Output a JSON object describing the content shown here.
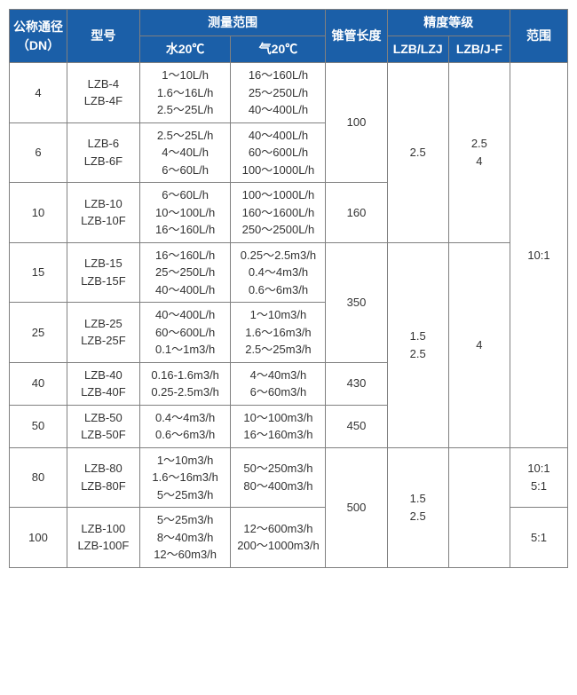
{
  "colors": {
    "header_bg": "#1b5fa8",
    "header_fg": "#ffffff",
    "border": "#808080",
    "text": "#333333",
    "bg": "#ffffff"
  },
  "header": {
    "dn": "公称通径（DN）",
    "model": "型号",
    "measure_range": "测量范围",
    "water": "水20℃",
    "air": "气20℃",
    "cone_length": "锥管长度",
    "accuracy": "精度等级",
    "acc1": "LZB/LZJ",
    "acc2": "LZB/J-F",
    "range": "范围"
  },
  "rows": {
    "dn4": {
      "dn": "4",
      "model": "LZB-4\nLZB-4F",
      "water": "1～10L/h\n1.6～16L/h\n2.5～25L/h",
      "air": "16～160L/h\n25～250L/h\n40～400L/h"
    },
    "dn6": {
      "dn": "6",
      "model": "LZB-6\nLZB-6F",
      "water": "2.5～25L/h\n4～40L/h\n6～60L/h",
      "air": "40～400L/h\n60～600L/h\n100～1000L/h"
    },
    "dn10": {
      "dn": "10",
      "model": "LZB-10\nLZB-10F",
      "water": "6～60L/h\n10～100L/h\n16～160L/h",
      "air": "100～1000L/h\n160～1600L/h\n250～2500L/h"
    },
    "dn15": {
      "dn": "15",
      "model": "LZB-15\nLZB-15F",
      "water": "16～160L/h\n25～250L/h\n40～400L/h",
      "air": "0.25～2.5m3/h\n0.4～4m3/h\n0.6～6m3/h"
    },
    "dn25": {
      "dn": "25",
      "model": "LZB-25\nLZB-25F",
      "water": "40～400L/h\n60～600L/h\n0.1～1m3/h",
      "air": "1～10m3/h\n1.6～16m3/h\n2.5～25m3/h"
    },
    "dn40": {
      "dn": "40",
      "model": "LZB-40\nLZB-40F",
      "water": "0.16-1.6m3/h\n0.25-2.5m3/h",
      "air": "4～40m3/h\n6～60m3/h"
    },
    "dn50": {
      "dn": "50",
      "model": "LZB-50\nLZB-50F",
      "water": "0.4～4m3/h\n0.6～6m3/h",
      "air": "10～100m3/h\n16～160m3/h"
    },
    "dn80": {
      "dn": "80",
      "model": "LZB-80\nLZB-80F",
      "water": "1～10m3/h\n1.6～16m3/h\n5～25m3/h",
      "air": "50～250m3/h\n80～400m3/h"
    },
    "dn100": {
      "dn": "100",
      "model": "LZB-100\nLZB-100F",
      "water": "5～25m3/h\n8～40m3/h\n12～60m3/h",
      "air": "12～600m3/h\n200～1000m3/h"
    }
  },
  "cone": {
    "g1": "100",
    "g2": "160",
    "g3": "350",
    "g4": "430",
    "g5": "450",
    "g6": "500"
  },
  "acc1": {
    "g1": "2.5",
    "g2": "1.5\n2.5",
    "g3": "1.5\n2.5"
  },
  "acc2": {
    "g1": "2.5\n4",
    "g2": "4"
  },
  "range": {
    "g1": "10:1",
    "g2": "10:1\n5:1",
    "g3": "5:1"
  }
}
